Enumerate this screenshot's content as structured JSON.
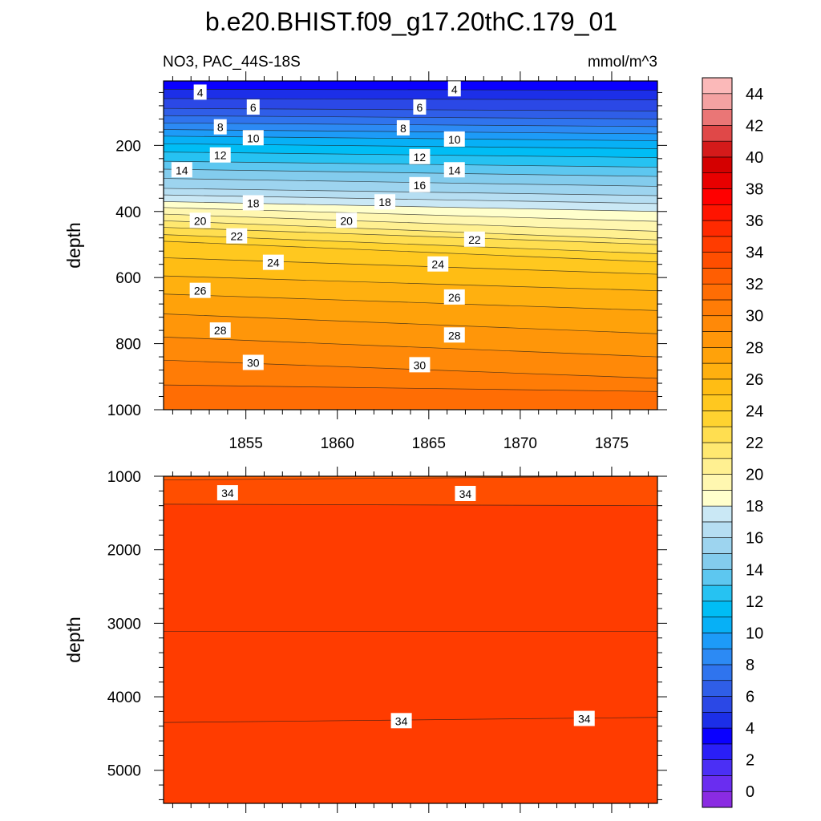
{
  "chart_data": {
    "type": "contour",
    "title": "b.e20.BHIST.f09_g17.20thC.179_01",
    "subtitle_left": "NO3, PAC_44S-18S",
    "units": "mmol/m^3",
    "x_label": "",
    "x_range": [
      1850.5,
      1877.5
    ],
    "x_ticks": [
      1855,
      1860,
      1865,
      1870,
      1875
    ],
    "colorbar": {
      "levels": [
        0,
        2,
        4,
        6,
        8,
        10,
        12,
        14,
        16,
        18,
        20,
        22,
        24,
        26,
        28,
        30,
        32,
        34,
        36,
        38,
        40,
        42,
        44
      ],
      "tick_labels": [
        "0",
        "2",
        "4",
        "6",
        "8",
        "10",
        "12",
        "14",
        "16",
        "18",
        "20",
        "22",
        "24",
        "26",
        "28",
        "30",
        "32",
        "34",
        "36",
        "38",
        "40",
        "42",
        "44"
      ],
      "colors": [
        "#8a2be2",
        "#6a2df0",
        "#4b2ff5",
        "#2a1ff7",
        "#0a00ff",
        "#1c2fe8",
        "#2b48e6",
        "#2f5ee8",
        "#2f74ee",
        "#2c8af4",
        "#1d9bf8",
        "#07b0f6",
        "#00bdf5",
        "#26c2f2",
        "#5dc7f0",
        "#83cced",
        "#9dd4ef",
        "#b6def2",
        "#cae8f5",
        "#ffffcc",
        "#fff7b0",
        "#fff091",
        "#ffe870",
        "#ffde50",
        "#ffd330",
        "#ffc81f",
        "#ffbd14",
        "#ffb00f",
        "#ffa20a",
        "#ff9609",
        "#ff8908",
        "#ff7c06",
        "#ff6d04",
        "#ff5e02",
        "#ff4e00",
        "#ff3c00",
        "#ff2a00",
        "#ff1400",
        "#ff0000",
        "#e80000",
        "#d40000",
        "#d41a1a",
        "#e04848",
        "#ea7676",
        "#f4a2a2",
        "#fbb9b9"
      ]
    },
    "panels": [
      {
        "name": "upper",
        "ylabel": "depth",
        "y_range": [
          5,
          1000
        ],
        "y_ticks": [
          200,
          400,
          600,
          800,
          1000
        ],
        "contour_levels": [
          4,
          5,
          6,
          7,
          8,
          9,
          10,
          11,
          12,
          13,
          14,
          15,
          16,
          17,
          18,
          19,
          20,
          21,
          22,
          23,
          24,
          25,
          26,
          27,
          28,
          29,
          30,
          31
        ],
        "depth_at_x_start": [
          30,
          58,
          88,
          110,
          132,
          152,
          172,
          195,
          220,
          248,
          272,
          300,
          330,
          350,
          370,
          388,
          408,
          428,
          448,
          470,
          490,
          540,
          595,
          650,
          710,
          780,
          850,
          925
        ],
        "depth_at_x_end": [
          33,
          62,
          96,
          120,
          143,
          165,
          186,
          210,
          237,
          266,
          294,
          324,
          352,
          376,
          400,
          430,
          460,
          486,
          500,
          528,
          553,
          590,
          640,
          700,
          770,
          840,
          905,
          945
        ],
        "labels": [
          {
            "text": "4",
            "x": 1852.5,
            "depth": 40
          },
          {
            "text": "4",
            "x": 1866.4,
            "depth": 30
          },
          {
            "text": "6",
            "x": 1855.4,
            "depth": 85
          },
          {
            "text": "6",
            "x": 1864.5,
            "depth": 85
          },
          {
            "text": "8",
            "x": 1853.6,
            "depth": 145
          },
          {
            "text": "8",
            "x": 1863.6,
            "depth": 148
          },
          {
            "text": "10",
            "x": 1855.4,
            "depth": 178
          },
          {
            "text": "10",
            "x": 1866.4,
            "depth": 182
          },
          {
            "text": "12",
            "x": 1853.6,
            "depth": 230
          },
          {
            "text": "12",
            "x": 1864.5,
            "depth": 235
          },
          {
            "text": "14",
            "x": 1851.5,
            "depth": 275
          },
          {
            "text": "14",
            "x": 1866.4,
            "depth": 275
          },
          {
            "text": "16",
            "x": 1864.5,
            "depth": 320
          },
          {
            "text": "18",
            "x": 1855.4,
            "depth": 375
          },
          {
            "text": "18",
            "x": 1862.6,
            "depth": 372
          },
          {
            "text": "20",
            "x": 1852.5,
            "depth": 428
          },
          {
            "text": "20",
            "x": 1860.5,
            "depth": 428
          },
          {
            "text": "22",
            "x": 1854.5,
            "depth": 475
          },
          {
            "text": "22",
            "x": 1867.5,
            "depth": 485
          },
          {
            "text": "24",
            "x": 1856.5,
            "depth": 555
          },
          {
            "text": "24",
            "x": 1865.5,
            "depth": 560
          },
          {
            "text": "26",
            "x": 1852.5,
            "depth": 640
          },
          {
            "text": "26",
            "x": 1866.4,
            "depth": 660
          },
          {
            "text": "28",
            "x": 1853.6,
            "depth": 760
          },
          {
            "text": "28",
            "x": 1866.4,
            "depth": 775
          },
          {
            "text": "30",
            "x": 1855.4,
            "depth": 858
          },
          {
            "text": "30",
            "x": 1864.5,
            "depth": 865
          }
        ]
      },
      {
        "name": "lower",
        "ylabel": "depth",
        "y_range": [
          1000,
          5450
        ],
        "y_ticks": [
          1000,
          2000,
          3000,
          4000,
          5000
        ],
        "contour_levels": [
          33,
          34,
          35,
          34
        ],
        "depth_at_x_start": [
          1050,
          1380,
          3110,
          4350
        ],
        "depth_at_x_end": [
          1000,
          1400,
          3110,
          4280
        ],
        "labels": [
          {
            "text": "34",
            "x": 1854.0,
            "depth": 1230
          },
          {
            "text": "34",
            "x": 1867.0,
            "depth": 1240
          },
          {
            "text": "34",
            "x": 1863.5,
            "depth": 4330
          },
          {
            "text": "34",
            "x": 1873.5,
            "depth": 4300
          }
        ]
      }
    ]
  }
}
